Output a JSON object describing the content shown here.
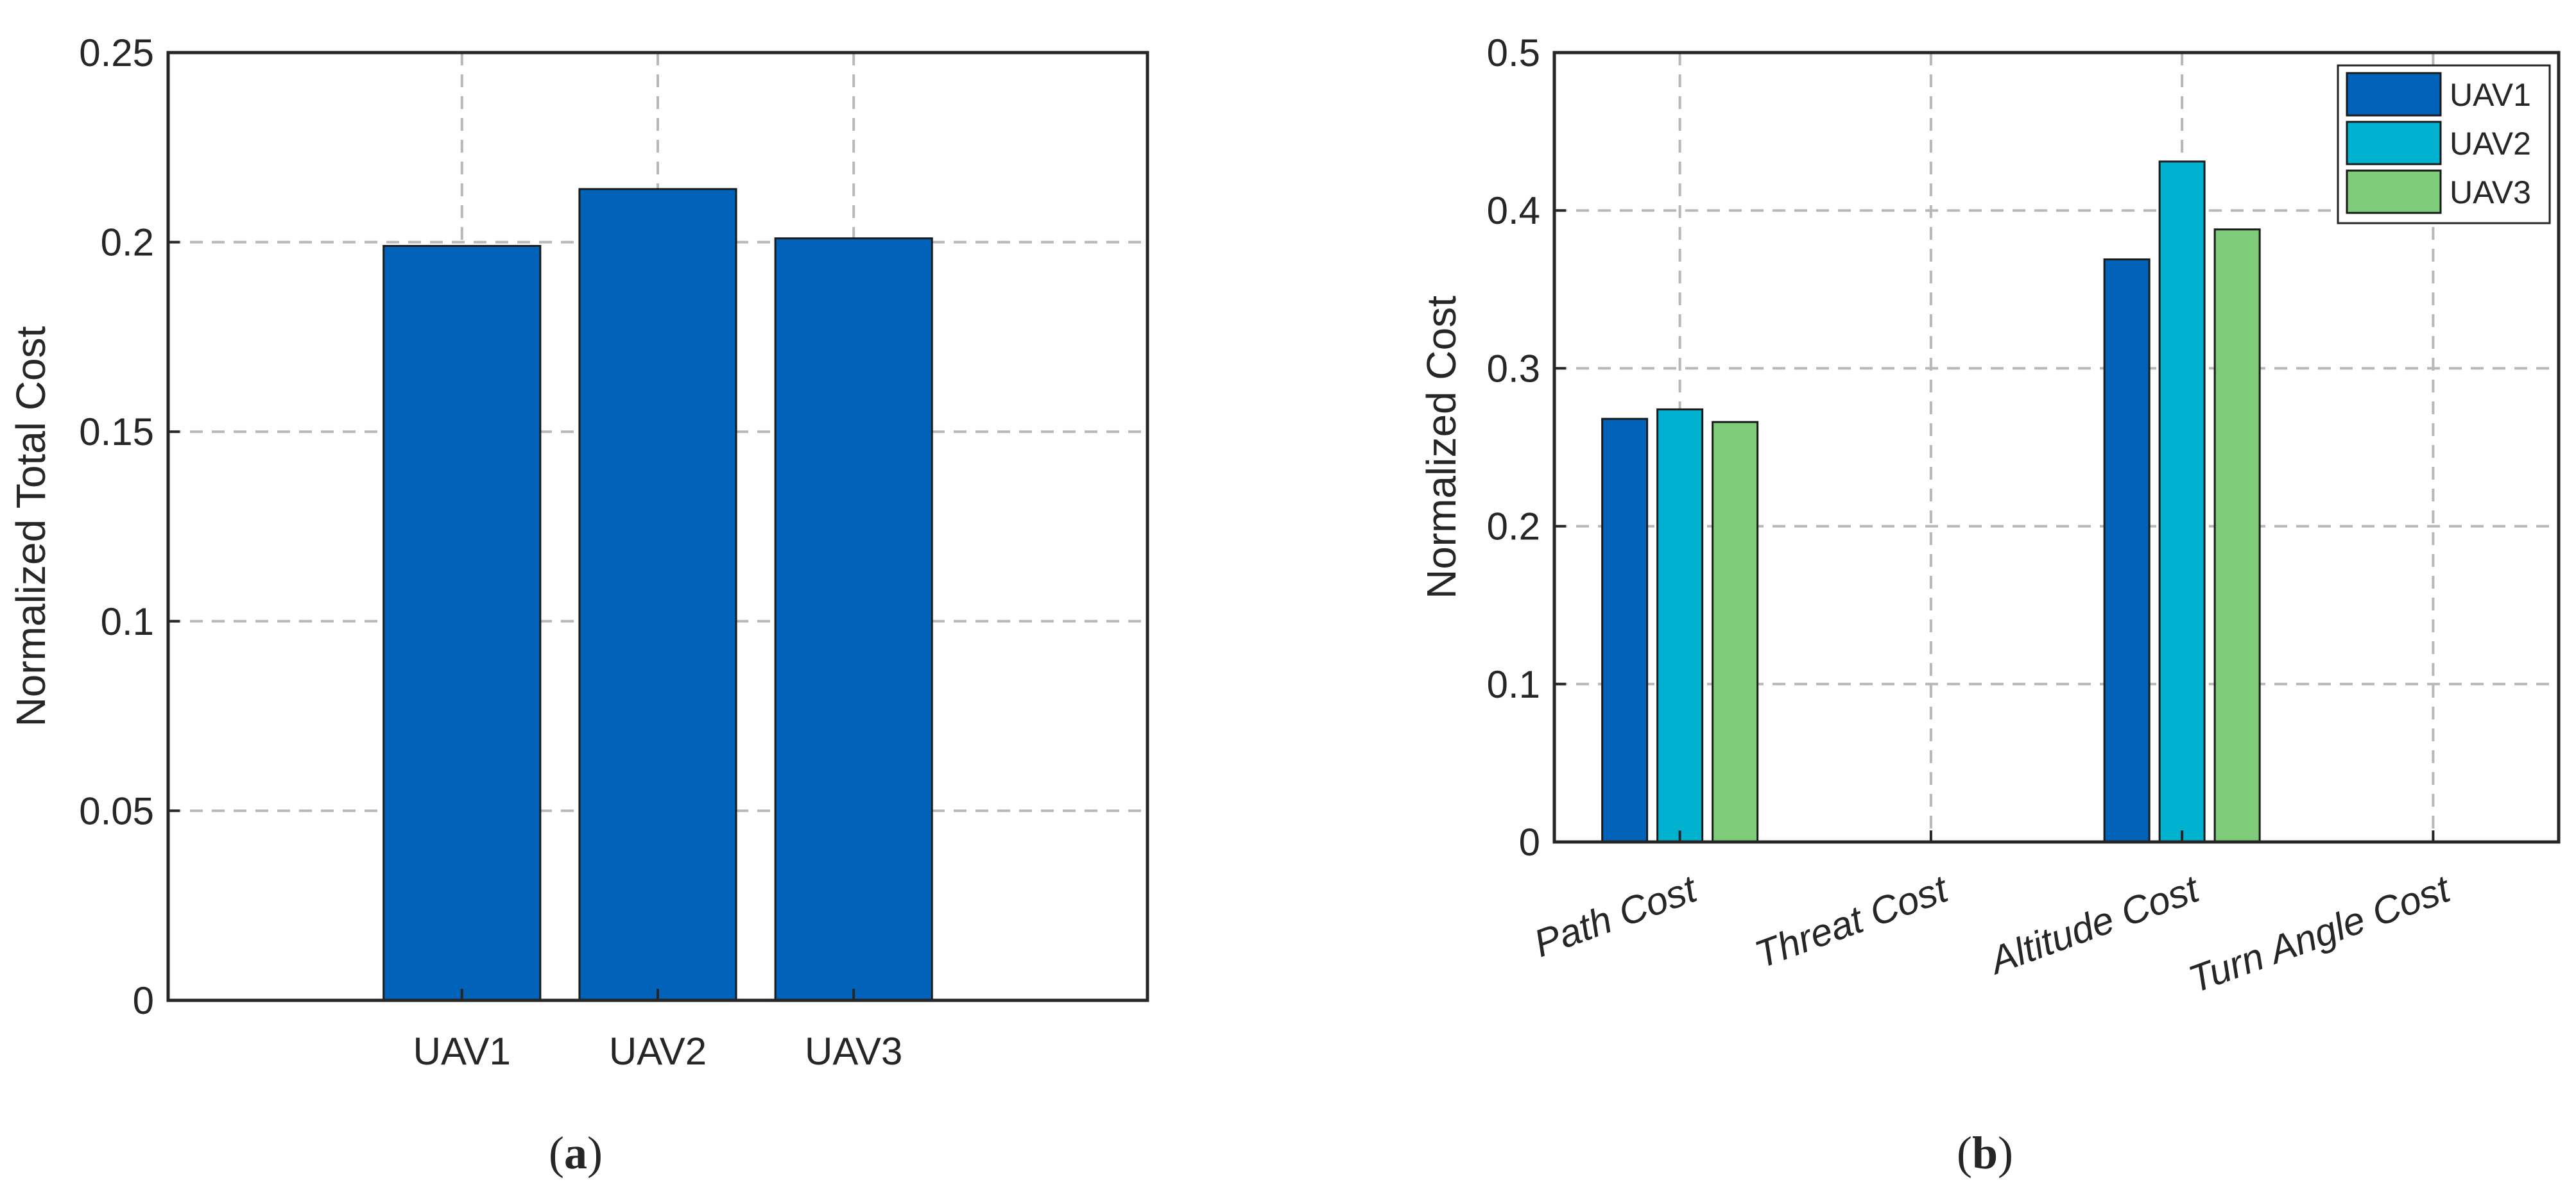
{
  "panels": {
    "a_label": "a",
    "b_label": "b"
  },
  "chart_data": [
    {
      "type": "bar",
      "title": "",
      "xlabel": "",
      "ylabel": "Normalized Total Cost",
      "categories": [
        "UAV1",
        "UAV2",
        "UAV3"
      ],
      "values": [
        0.199,
        0.214,
        0.201
      ],
      "ylim": [
        0,
        0.25
      ],
      "yticks": [
        0,
        0.05,
        0.1,
        0.15,
        0.2,
        0.25
      ],
      "ytick_labels": [
        "0",
        "0.05",
        "0.1",
        "0.15",
        "0.2",
        "0.25"
      ],
      "grid": true,
      "bar_color": "#0062b8"
    },
    {
      "type": "bar",
      "title": "",
      "xlabel": "",
      "ylabel": "Normalized Cost",
      "categories": [
        "Path Cost",
        "Threat Cost",
        "Altitude Cost",
        "Turn Angle Cost"
      ],
      "series": [
        {
          "name": "UAV1",
          "values": [
            0.268,
            0,
            0.369,
            0
          ],
          "color": "#0062b8"
        },
        {
          "name": "UAV2",
          "values": [
            0.274,
            0,
            0.431,
            0
          ],
          "color": "#00b2cf"
        },
        {
          "name": "UAV3",
          "values": [
            0.266,
            0,
            0.388,
            0
          ],
          "color": "#7ecb7a"
        }
      ],
      "ylim": [
        0,
        0.5
      ],
      "yticks": [
        0,
        0.1,
        0.2,
        0.3,
        0.4,
        0.5
      ],
      "ytick_labels": [
        "0",
        "0.1",
        "0.2",
        "0.3",
        "0.4",
        "0.5"
      ],
      "grid": true,
      "legend": "top-right"
    }
  ]
}
